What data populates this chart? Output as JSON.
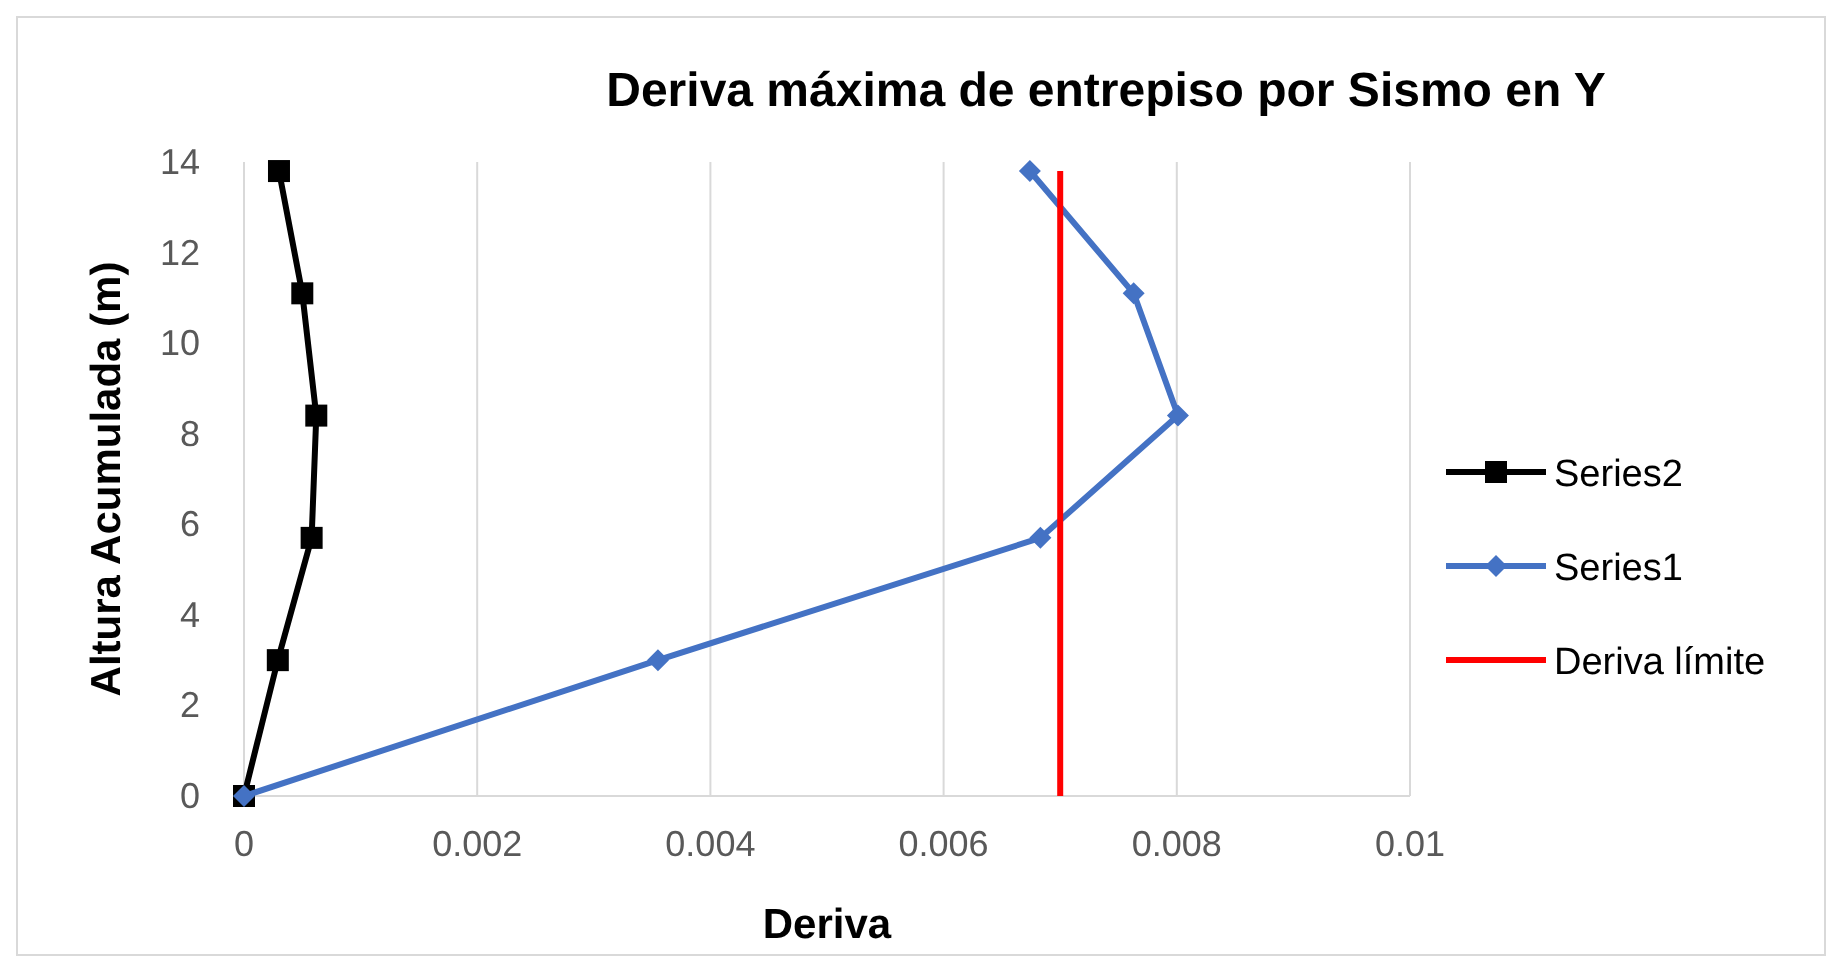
{
  "chart_data": {
    "type": "line",
    "title": "Deriva máxima de entrepiso por Sismo en Y",
    "xlabel": "Deriva",
    "ylabel": "Altura Acumulada (m)",
    "xlim": [
      0,
      0.01
    ],
    "xticks": [
      0,
      0.002,
      0.004,
      0.006,
      0.008,
      0.01
    ],
    "ylim": [
      0,
      14
    ],
    "yticks": [
      0,
      2,
      4,
      6,
      8,
      10,
      12,
      14
    ],
    "grid": "x",
    "legend": "right",
    "series": [
      {
        "name": "Series2",
        "color": "#000000",
        "marker": "square",
        "x": [
          0,
          0.00029,
          0.00058,
          0.00062,
          0.0005,
          0.0003
        ],
        "values": [
          0,
          3.0,
          5.7,
          8.4,
          11.1,
          13.8
        ]
      },
      {
        "name": "Series1",
        "color": "#4472c4",
        "marker": "diamond",
        "x": [
          0,
          0.00355,
          0.00683,
          0.00801,
          0.00763,
          0.00674
        ],
        "values": [
          0,
          3.0,
          5.7,
          8.4,
          11.1,
          13.8
        ]
      },
      {
        "name": "Deriva límite",
        "color": "#ff0000",
        "marker": "none",
        "x": [
          0.007,
          0.007
        ],
        "values": [
          0,
          13.8
        ]
      }
    ]
  }
}
